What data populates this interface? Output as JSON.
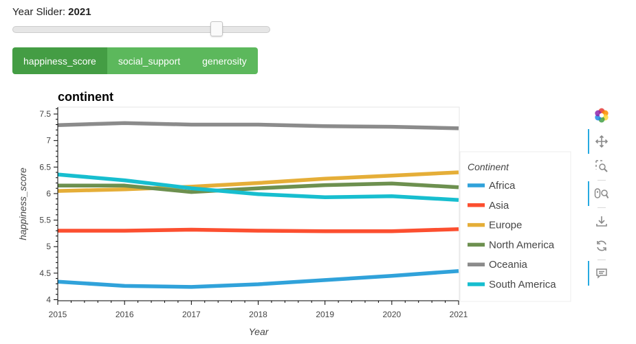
{
  "slider": {
    "label": "Year Slider: ",
    "value": "2021",
    "min": 2015,
    "max": 2021,
    "current": 2021,
    "position_fraction": 0.75
  },
  "tabs": [
    {
      "label": "happiness_score",
      "active": true
    },
    {
      "label": "social_support",
      "active": false
    },
    {
      "label": "generosity",
      "active": false
    }
  ],
  "toolbar": {
    "tools": [
      "bokeh-logo-icon",
      "pan-icon",
      "box-zoom-icon",
      "wheel-zoom-icon",
      "save-icon",
      "reset-icon",
      "hover-icon"
    ]
  },
  "chart_data": {
    "type": "line",
    "title": "continent",
    "xlabel": "Year",
    "ylabel": "happiness_score",
    "x": [
      2015,
      2016,
      2017,
      2018,
      2019,
      2020,
      2021
    ],
    "xlim": [
      2015,
      2021
    ],
    "ylim": [
      3.98,
      7.63
    ],
    "yticks": [
      4,
      4.5,
      5,
      5.5,
      6,
      6.5,
      7,
      7.5
    ],
    "yticklabels": [
      "4",
      "4.5",
      "5",
      "5.5",
      "6",
      "6.5",
      "7",
      "7.5"
    ],
    "xticklabels": [
      "2015",
      "2016",
      "2017",
      "2018",
      "2019",
      "2020",
      "2021"
    ],
    "grid": false,
    "legend_title": "Continent",
    "legend_position": "right",
    "series": [
      {
        "name": "Africa",
        "color": "#30a2da",
        "values": [
          4.34,
          4.26,
          4.24,
          4.29,
          4.37,
          4.45,
          4.54
        ]
      },
      {
        "name": "Asia",
        "color": "#fc4f30",
        "values": [
          5.3,
          5.3,
          5.32,
          5.3,
          5.29,
          5.29,
          5.33
        ]
      },
      {
        "name": "Europe",
        "color": "#e5ae38",
        "values": [
          6.05,
          6.08,
          6.13,
          6.2,
          6.28,
          6.34,
          6.4
        ]
      },
      {
        "name": "North America",
        "color": "#6d904f",
        "values": [
          6.15,
          6.15,
          6.03,
          6.1,
          6.16,
          6.19,
          6.12
        ]
      },
      {
        "name": "Oceania",
        "color": "#8b8b8b",
        "values": [
          7.29,
          7.33,
          7.3,
          7.3,
          7.27,
          7.26,
          7.23
        ]
      },
      {
        "name": "South America",
        "color": "#17becf",
        "values": [
          6.36,
          6.25,
          6.1,
          5.99,
          5.93,
          5.95,
          5.88
        ]
      }
    ]
  }
}
